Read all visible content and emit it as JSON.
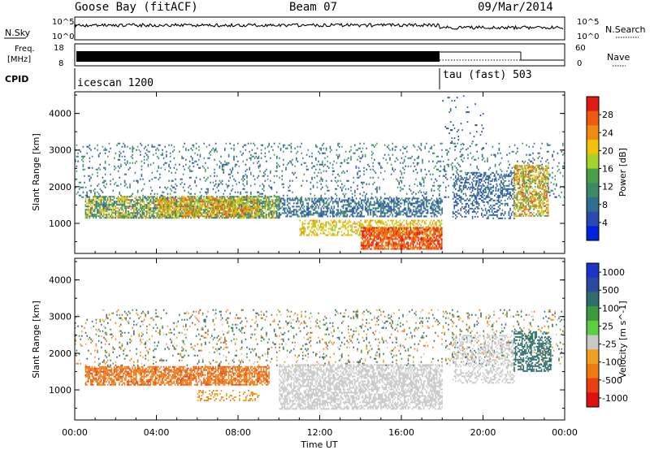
{
  "header": {
    "station": "Goose Bay (fitACF)",
    "beam": "Beam 07",
    "date": "09/Mar/2014"
  },
  "noise_panel": {
    "left_label": "N.Sky",
    "right_label": "N.Search",
    "left_ticks": [
      "10^5",
      "10^0"
    ],
    "right_ticks": [
      "10^5",
      "10^0"
    ]
  },
  "freq_panel": {
    "left_label_1": "Freq.",
    "left_label_2": "[MHz]",
    "left_ticks": [
      "18",
      "8"
    ],
    "right_label": "Nave",
    "right_ticks": [
      "60",
      "0"
    ]
  },
  "cpid_panel": {
    "label": "CPID",
    "modes": [
      "icescan 1200",
      "tau (fast) 503"
    ]
  },
  "time_axis": {
    "title": "Time UT",
    "ticks": [
      "00:00",
      "04:00",
      "08:00",
      "12:00",
      "16:00",
      "20:00",
      "00:00"
    ]
  },
  "chart_data": [
    {
      "type": "heatmap",
      "title": "",
      "xlabel": "Time UT",
      "ylabel": "Slant Range [km]",
      "x_ticks_hours": [
        0,
        4,
        8,
        12,
        16,
        20,
        24
      ],
      "y_ticks": [
        1000,
        2000,
        3000,
        4000
      ],
      "ylim": [
        180,
        4590
      ],
      "colorbar": {
        "title": "Power [dB]",
        "ticks": [
          "4",
          "8",
          "12",
          "16",
          "20",
          "24",
          "28"
        ],
        "colors": [
          "#0022dd",
          "#2a4ab0",
          "#2e6f8e",
          "#3a8a64",
          "#4aa04a",
          "#a7d22a",
          "#f2c20a",
          "#f08a10",
          "#f05a10",
          "#e01a10"
        ]
      },
      "scatter_regions": [
        {
          "t": [
            0.5,
            10.0
          ],
          "r": [
            1150,
            1750
          ],
          "v": [
            6,
            24
          ],
          "density": 0.75
        },
        {
          "t": [
            4.0,
            9.0
          ],
          "r": [
            1200,
            1700
          ],
          "v": [
            14,
            28
          ],
          "density": 0.6
        },
        {
          "t": [
            0.0,
            24.0
          ],
          "r": [
            1700,
            3200
          ],
          "v": [
            4,
            14
          ],
          "density": 0.12
        },
        {
          "t": [
            10.0,
            18.0
          ],
          "r": [
            1200,
            1700
          ],
          "v": [
            4,
            12
          ],
          "density": 0.55
        },
        {
          "t": [
            11.0,
            18.0
          ],
          "r": [
            700,
            1100
          ],
          "v": [
            16,
            24
          ],
          "density": 0.45
        },
        {
          "t": [
            14.0,
            18.0
          ],
          "r": [
            300,
            900
          ],
          "v": [
            24,
            30
          ],
          "density": 0.75
        },
        {
          "t": [
            18.5,
            21.5
          ],
          "r": [
            1150,
            2400
          ],
          "v": [
            4,
            10
          ],
          "density": 0.35
        },
        {
          "t": [
            21.5,
            23.2
          ],
          "r": [
            1200,
            2600
          ],
          "v": [
            12,
            28
          ],
          "density": 0.6
        },
        {
          "t": [
            18.0,
            20.0
          ],
          "r": [
            3000,
            4500
          ],
          "v": [
            4,
            8
          ],
          "density": 0.05
        }
      ]
    },
    {
      "type": "heatmap",
      "title": "",
      "xlabel": "Time UT",
      "ylabel": "Slant Range [km]",
      "x_ticks_hours": [
        0,
        4,
        8,
        12,
        16,
        20,
        24
      ],
      "y_ticks": [
        1000,
        2000,
        3000,
        4000
      ],
      "ylim": [
        180,
        4590
      ],
      "colorbar": {
        "title": "Velocity [m s^-1]",
        "ticks": [
          "1000",
          "500",
          "100",
          "25",
          "-25",
          "-100",
          "-500",
          "-1000"
        ],
        "colors": [
          "#1a33c8",
          "#2a4aa0",
          "#2d6e6a",
          "#3c9a3c",
          "#5ad040",
          "#c8c8c8",
          "#f0a020",
          "#f07a10",
          "#e84010",
          "#e01010"
        ]
      },
      "scatter_regions": [
        {
          "t": [
            0.5,
            9.5
          ],
          "r": [
            1150,
            1650
          ],
          "v": [
            -600,
            -150
          ],
          "density": 0.7
        },
        {
          "t": [
            0.0,
            24.0
          ],
          "r": [
            1650,
            3200
          ],
          "v": [
            -200,
            300
          ],
          "density": 0.12
        },
        {
          "t": [
            10.0,
            18.0
          ],
          "r": [
            500,
            1700
          ],
          "v": [
            -20,
            20
          ],
          "density": 0.6
        },
        {
          "t": [
            18.5,
            21.5
          ],
          "r": [
            1200,
            2500
          ],
          "v": [
            -20,
            20
          ],
          "density": 0.35
        },
        {
          "t": [
            21.5,
            23.3
          ],
          "r": [
            1500,
            2600
          ],
          "v": [
            100,
            400
          ],
          "density": 0.5
        },
        {
          "t": [
            6.0,
            9.0
          ],
          "r": [
            700,
            1000
          ],
          "v": [
            -150,
            -50
          ],
          "density": 0.3
        }
      ]
    }
  ]
}
